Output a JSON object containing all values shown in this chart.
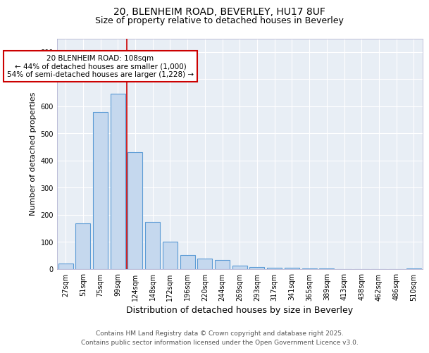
{
  "title1": "20, BLENHEIM ROAD, BEVERLEY, HU17 8UF",
  "title2": "Size of property relative to detached houses in Beverley",
  "xlabel": "Distribution of detached houses by size in Beverley",
  "ylabel": "Number of detached properties",
  "categories": [
    "27sqm",
    "51sqm",
    "75sqm",
    "99sqm",
    "124sqm",
    "148sqm",
    "172sqm",
    "196sqm",
    "220sqm",
    "244sqm",
    "269sqm",
    "293sqm",
    "317sqm",
    "341sqm",
    "365sqm",
    "389sqm",
    "413sqm",
    "438sqm",
    "462sqm",
    "486sqm",
    "510sqm"
  ],
  "values": [
    20,
    170,
    580,
    645,
    430,
    175,
    102,
    52,
    40,
    33,
    12,
    8,
    5,
    4,
    3,
    2,
    1,
    1,
    1,
    1,
    3
  ],
  "bar_color": "#c5d8ee",
  "bar_edge_color": "#5b9bd5",
  "red_line_x": 3.5,
  "annotation_title": "20 BLENHEIM ROAD: 108sqm",
  "annotation_line1": "← 44% of detached houses are smaller (1,000)",
  "annotation_line2": "54% of semi-detached houses are larger (1,228) →",
  "annotation_box_facecolor": "#ffffff",
  "annotation_box_edgecolor": "#cc0000",
  "ylim": [
    0,
    850
  ],
  "yticks": [
    0,
    100,
    200,
    300,
    400,
    500,
    600,
    700,
    800
  ],
  "footer1": "Contains HM Land Registry data © Crown copyright and database right 2025.",
  "footer2": "Contains public sector information licensed under the Open Government Licence v3.0.",
  "fig_bg_color": "#ffffff",
  "axes_bg_color": "#e8eef5",
  "grid_color": "#ffffff",
  "title_fontsize": 10,
  "subtitle_fontsize": 9,
  "tick_fontsize": 7,
  "ylabel_fontsize": 8,
  "xlabel_fontsize": 9,
  "footer_fontsize": 6.5,
  "annot_fontsize": 7.5
}
